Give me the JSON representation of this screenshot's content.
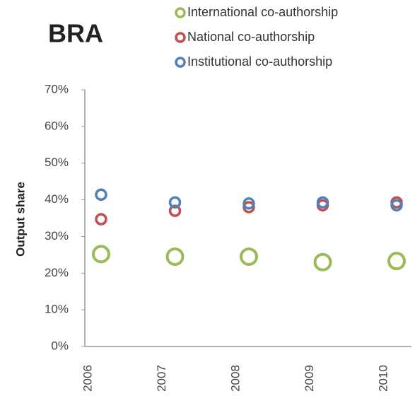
{
  "chart_data": {
    "type": "scatter",
    "title": "BRA",
    "y_label": "Output share",
    "categories": [
      "2006",
      "2007",
      "2008",
      "2009",
      "2010"
    ],
    "series": [
      {
        "name": "International co-authorship",
        "color": "#9bbb59",
        "values": [
          25.2,
          24.5,
          24.5,
          23.0,
          23.3
        ]
      },
      {
        "name": "National co-authorship",
        "color": "#c0504d",
        "values": [
          34.7,
          37.0,
          38.0,
          38.5,
          39.3
        ]
      },
      {
        "name": "Institutional co-authorship",
        "color": "#4f81bd",
        "values": [
          41.4,
          39.3,
          39.0,
          39.3,
          38.5
        ]
      }
    ],
    "ylim": [
      0,
      70
    ],
    "yticks": [
      {
        "value": 0,
        "label": "0%"
      },
      {
        "value": 10,
        "label": "10%"
      },
      {
        "value": 20,
        "label": "20%"
      },
      {
        "value": 30,
        "label": "30%"
      },
      {
        "value": 40,
        "label": "40%"
      },
      {
        "value": 50,
        "label": "50%"
      },
      {
        "value": 60,
        "label": "60%"
      },
      {
        "value": 70,
        "label": "70%"
      }
    ],
    "grid": false,
    "legend": "top"
  }
}
